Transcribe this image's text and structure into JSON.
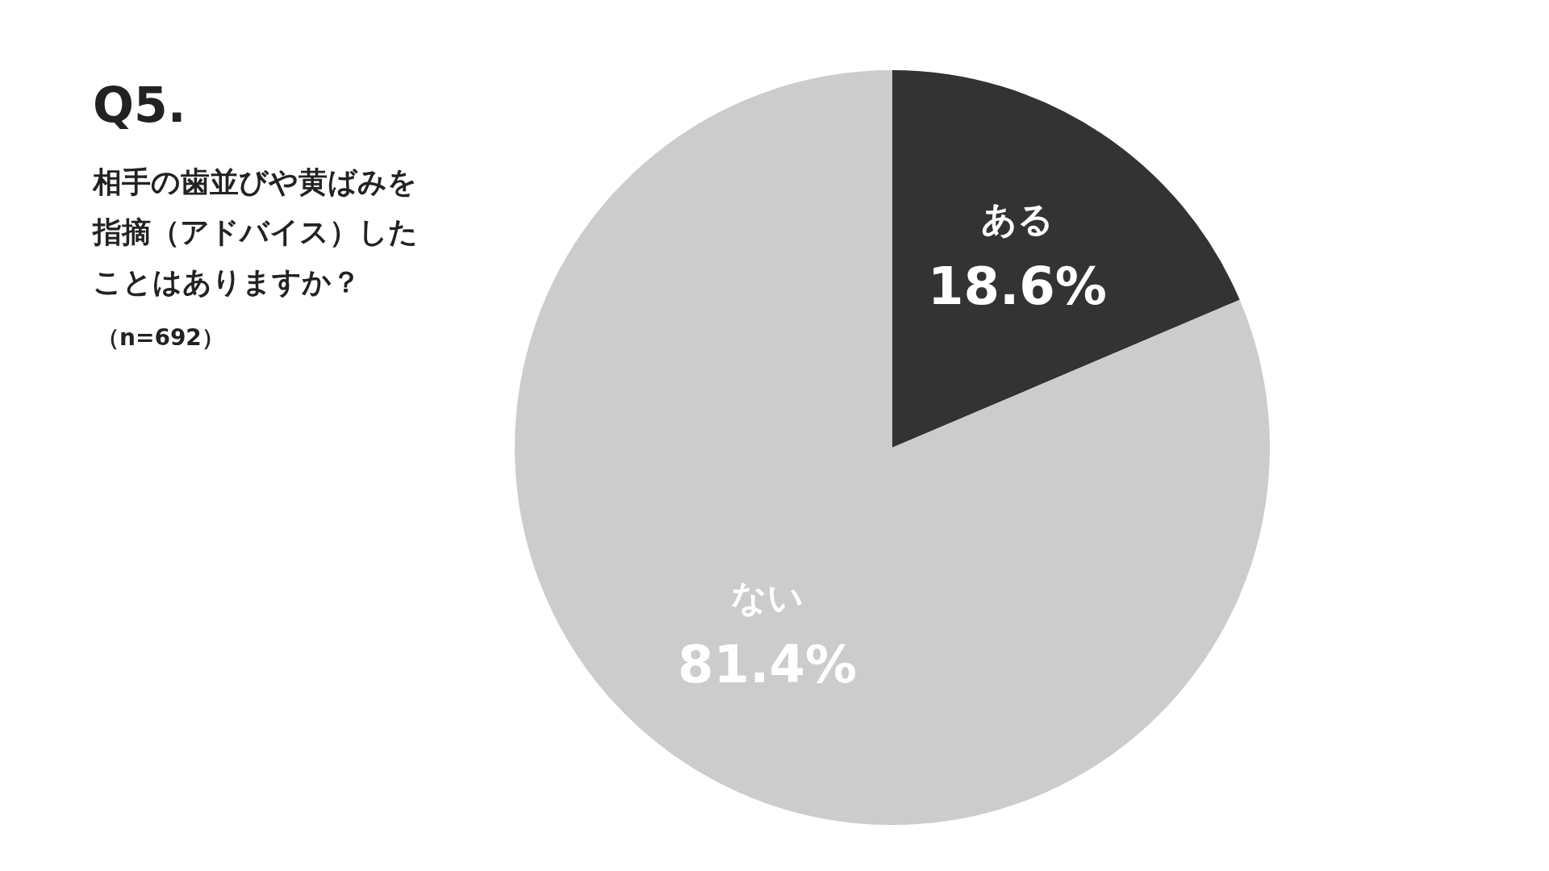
{
  "chart_data": {
    "type": "pie",
    "title": "Q5.",
    "subtitle": "相手の歯並びや黄ばみを指摘（アドバイス）したことはありますか？",
    "annotations": [
      "（n=692）"
    ],
    "categories": [
      "ある",
      "ない"
    ],
    "values": [
      18.6,
      81.4
    ],
    "colors": [
      "#333333",
      "#cccccc"
    ],
    "value_labels": [
      "18.6%",
      "81.4%"
    ],
    "legend": false
  }
}
